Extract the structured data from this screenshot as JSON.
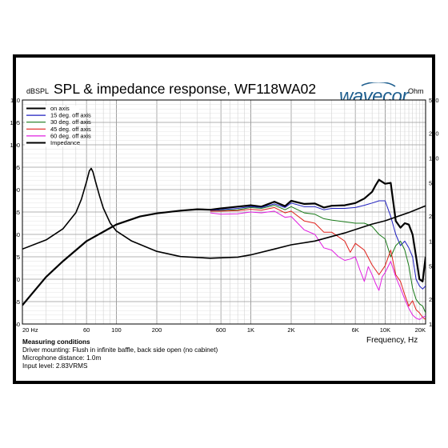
{
  "chart_data": {
    "type": "line",
    "title": "SPL & impedance response, WF118WA02",
    "ylabel": "dBSPL",
    "ylabel_right": "Ohm",
    "xlabel": "Frequency, Hz",
    "x_scale": "log",
    "xlim": [
      20,
      20000
    ],
    "ylim": [
      60,
      110
    ],
    "y2lim": [
      1,
      500
    ],
    "y2_scale": "log",
    "grid": true,
    "legend_position": "top-left",
    "x_ticks": [
      "20 Hz",
      "60",
      "100",
      "200",
      "600",
      "1K",
      "2K",
      "6K",
      "10K",
      "20K"
    ],
    "x_tick_values": [
      20,
      60,
      100,
      200,
      600,
      1000,
      2000,
      6000,
      10000,
      20000
    ],
    "y_ticks": [
      "110",
      "105",
      "100",
      "95",
      "90",
      "85",
      "80",
      "75",
      "70",
      "65",
      "60"
    ],
    "y2_ticks": [
      "500",
      "200",
      "100",
      "50",
      "20",
      "10",
      "5",
      "2",
      "1"
    ],
    "y2_tick_values": [
      500,
      200,
      100,
      50,
      20,
      10,
      5,
      2,
      1
    ],
    "series": [
      {
        "name": "on axis",
        "color": "#000000",
        "width": 2.2,
        "x": [
          20,
          30,
          40,
          60,
          100,
          150,
          200,
          300,
          400,
          500,
          600,
          800,
          1000,
          1200,
          1500,
          1800,
          2000,
          2500,
          3000,
          3500,
          4000,
          5000,
          6000,
          7000,
          8000,
          8500,
          9000,
          10000,
          11000,
          12000,
          13000,
          14000,
          15000,
          16000,
          17000,
          18000,
          19000,
          20000
        ],
        "y": [
          64.2,
          70.5,
          74,
          78.5,
          82.2,
          84,
          84.7,
          85.3,
          85.6,
          85.5,
          85.8,
          86.2,
          86.5,
          86.2,
          87.3,
          86.3,
          87.5,
          86.8,
          86.9,
          86,
          86.4,
          86.5,
          87,
          88,
          89.5,
          91,
          92.2,
          91.3,
          91.5,
          83,
          81.5,
          82.5,
          82.2,
          80,
          75,
          70,
          69.5,
          75
        ]
      },
      {
        "name": "15 deg. off axis",
        "color": "#1f1fbf",
        "width": 1,
        "x": [
          500,
          600,
          800,
          1000,
          1200,
          1500,
          1800,
          2000,
          2500,
          3000,
          3500,
          4000,
          5000,
          6000,
          7000,
          8000,
          9000,
          10000,
          11000,
          12000,
          13000,
          14000,
          15000,
          16000,
          17000,
          18000,
          19000,
          20000
        ],
        "y": [
          85.3,
          85.5,
          85.8,
          86.2,
          86,
          86.8,
          86,
          87,
          86.2,
          86.2,
          85.5,
          85.8,
          85.8,
          86,
          86.5,
          87,
          87.5,
          87.5,
          84,
          80,
          77.5,
          78.5,
          77,
          75,
          70,
          68.5,
          67.8,
          68.5
        ]
      },
      {
        "name": "30 deg. off axis",
        "color": "#1a7a1a",
        "width": 1,
        "x": [
          500,
          600,
          800,
          1000,
          1200,
          1500,
          1800,
          2000,
          2500,
          3000,
          3500,
          4000,
          5000,
          6000,
          7000,
          8000,
          9000,
          10000,
          11000,
          12000,
          13000,
          14000,
          15000,
          16000,
          17000,
          18000,
          19000,
          20000
        ],
        "y": [
          85.2,
          85.3,
          85.5,
          86,
          85.8,
          86.5,
          85.5,
          86.2,
          84.8,
          84.5,
          83.5,
          83.2,
          82.8,
          82.5,
          82.5,
          81.8,
          80,
          79,
          75,
          77.5,
          78.5,
          76.5,
          73,
          68,
          65.5,
          64.5,
          64,
          62.5
        ]
      },
      {
        "name": "45 deg. off axis",
        "color": "#e0201a",
        "width": 1,
        "x": [
          500,
          600,
          800,
          1000,
          1200,
          1500,
          1800,
          2000,
          2500,
          3000,
          3500,
          4000,
          5000,
          5500,
          6000,
          7000,
          8000,
          9000,
          10000,
          11000,
          12000,
          13000,
          14000,
          15000,
          16000,
          17000,
          18000,
          19000,
          20000
        ],
        "y": [
          85.2,
          85.2,
          85.3,
          85.6,
          85.4,
          86,
          84.8,
          85.2,
          83,
          82.5,
          80.5,
          80.5,
          78.5,
          76,
          78,
          76.5,
          73.2,
          71,
          73,
          76.5,
          71,
          69.5,
          66.5,
          64,
          65.2,
          63.2,
          62.5,
          61.5,
          61
        ]
      },
      {
        "name": "60 deg. off axis",
        "color": "#e020e0",
        "width": 1,
        "x": [
          500,
          600,
          800,
          1000,
          1200,
          1500,
          1800,
          2000,
          2500,
          3000,
          3500,
          4000,
          4500,
          5000,
          5500,
          6000,
          6500,
          7000,
          7500,
          8000,
          8500,
          9000,
          9500,
          10000,
          11000,
          12000,
          13000,
          14000,
          15000,
          16000,
          17000,
          18000,
          19000,
          20000
        ],
        "y": [
          84.8,
          84.5,
          84.6,
          85,
          84.8,
          85.2,
          83.8,
          84,
          81,
          80,
          77,
          76.5,
          75,
          74.2,
          74.5,
          75,
          72,
          69.5,
          72.8,
          71,
          69,
          67.5,
          70.5,
          71.5,
          74,
          70.5,
          68,
          65.5,
          63.5,
          62,
          61.3,
          61,
          61.5,
          61.8
        ]
      },
      {
        "name": "Impedance",
        "color": "#000000",
        "width": 1.6,
        "axis": "right",
        "x": [
          20,
          30,
          40,
          50,
          55,
          60,
          63,
          65,
          67,
          70,
          75,
          80,
          90,
          100,
          130,
          200,
          300,
          500,
          800,
          1000,
          1500,
          2000,
          3000,
          5000,
          8000,
          10000,
          15000,
          20000
        ],
        "y": [
          8.0,
          10.3,
          14.0,
          22.0,
          32.0,
          52.0,
          70.0,
          75.0,
          68.0,
          52.0,
          35.0,
          25.0,
          16.5,
          13.2,
          10.0,
          7.5,
          6.5,
          6.2,
          6.4,
          6.8,
          8.0,
          9.0,
          10.0,
          12.5,
          16.0,
          17.5,
          22.0,
          26.5
        ]
      }
    ]
  },
  "units": {
    "left": "dBSPL",
    "right": "Ohm"
  },
  "logo": {
    "text": "wavecor",
    "color": "#1f5f8f"
  },
  "conditions": {
    "heading": "Measuring conditions",
    "lines": [
      "Driver mounting: Flush in infinite baffle, back side open (no cabinet)",
      "Microphone distance: 1.0m",
      "Input level: 2.83VRMS"
    ]
  }
}
